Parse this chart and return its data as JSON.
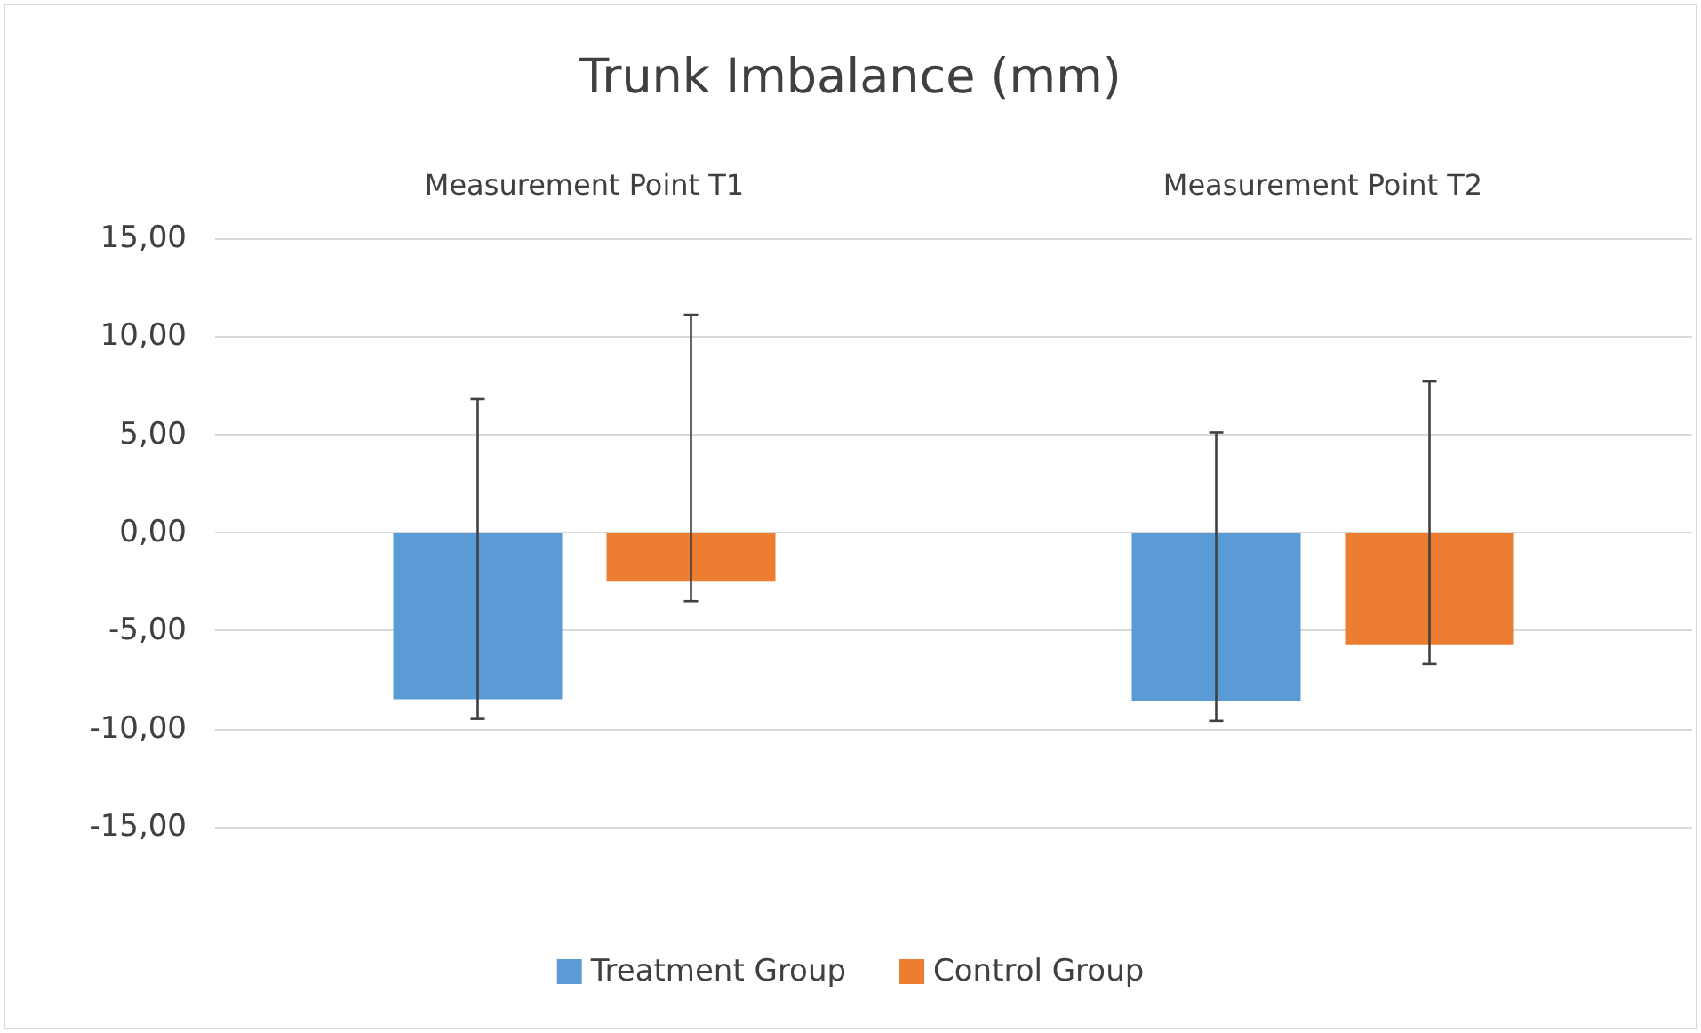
{
  "chart_data": {
    "type": "bar",
    "title": "Trunk Imbalance (mm)",
    "categories": [
      "Measurement Point T1",
      "Measurement Point T2"
    ],
    "series": [
      {
        "name": "Treatment Group",
        "color": "#5b9bd5",
        "values": [
          -8.5,
          -8.6
        ],
        "errors": [
          [
            -9.5,
            6.8
          ],
          [
            -9.6,
            5.1
          ]
        ]
      },
      {
        "name": "Control Group",
        "color": "#ed7d31",
        "values": [
          -2.5,
          -5.7
        ],
        "errors": [
          [
            -3.5,
            11.1
          ],
          [
            -6.7,
            7.7
          ]
        ]
      }
    ],
    "ylim": [
      -15,
      15
    ],
    "yticks": [
      {
        "value": -15,
        "label": "-15,00"
      },
      {
        "value": -10,
        "label": "-10,00"
      },
      {
        "value": -5,
        "label": "-5,00"
      },
      {
        "value": 0,
        "label": "0,00"
      },
      {
        "value": 5,
        "label": "5,00"
      },
      {
        "value": 10,
        "label": "10,00"
      },
      {
        "value": 15,
        "label": "15,00"
      }
    ],
    "grid": "y",
    "legend": "bottom"
  }
}
